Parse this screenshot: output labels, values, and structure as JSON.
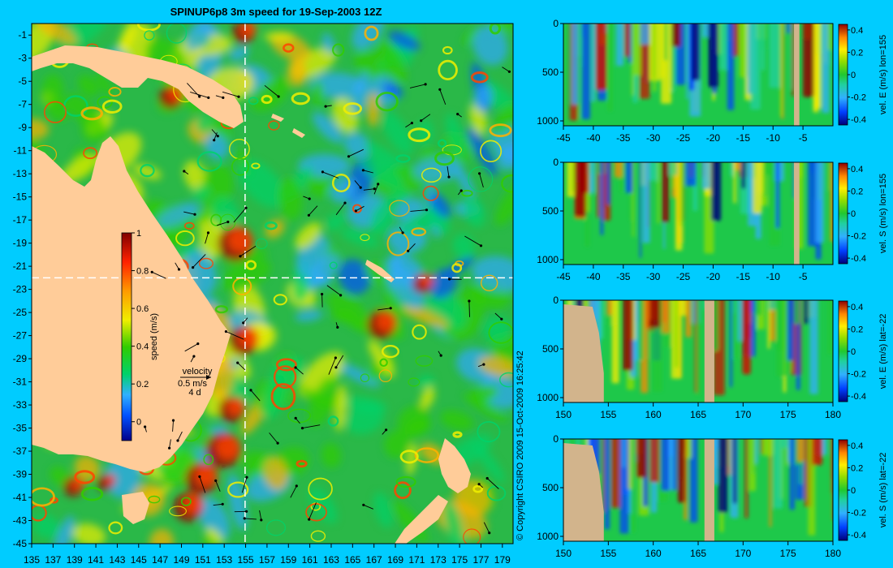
{
  "chart_data": [
    {
      "type": "heatmap",
      "title": "SPINUP6p8 3m speed for 19-Sep-2003 12Z",
      "x_ticks": [
        "135",
        "137",
        "139",
        "141",
        "143",
        "145",
        "147",
        "149",
        "151",
        "153",
        "155",
        "157",
        "159",
        "161",
        "163",
        "165",
        "167",
        "169",
        "171",
        "173",
        "175",
        "177",
        "179"
      ],
      "y_ticks": [
        "-1",
        "-3",
        "-5",
        "-7",
        "-9",
        "-11",
        "-13",
        "-15",
        "-17",
        "-19",
        "-21",
        "-23",
        "-25",
        "-27",
        "-29",
        "-31",
        "-33",
        "-35",
        "-37",
        "-39",
        "-41",
        "-43",
        "-45"
      ],
      "xlim": [
        135,
        180
      ],
      "ylim": [
        -45,
        0
      ],
      "colorbar": {
        "label": "speed (m/s)",
        "ticks": [
          "0",
          "0.2",
          "0.4",
          "0.6",
          "0.8",
          "1"
        ],
        "range": [
          -0.1,
          1
        ]
      },
      "velocity_key": {
        "label": "velocity",
        "speed": "0.5 m/s",
        "duration": "4 d"
      },
      "crosshair": {
        "lon": 155,
        "lat": -22
      },
      "copyright": "© Copyright CSIRO 2009  15-Oct-2009 16:25:42"
    },
    {
      "type": "heatmap",
      "x_ticks": [
        "-45",
        "-40",
        "-35",
        "-30",
        "-25",
        "-20",
        "-15",
        "-10",
        "-5"
      ],
      "y_ticks": [
        "0",
        "500",
        "1000"
      ],
      "xlim": [
        -45,
        0
      ],
      "ylim": [
        1050,
        0
      ],
      "colorbar": {
        "label": "vel. E (m/s) lon=155",
        "ticks": [
          "-0.4",
          "-0.2",
          "0",
          "0.2",
          "0.4"
        ]
      },
      "seed": 11
    },
    {
      "type": "heatmap",
      "x_ticks": [
        "-45",
        "-40",
        "-35",
        "-30",
        "-25",
        "-20",
        "-15",
        "-10",
        "-5"
      ],
      "y_ticks": [
        "0",
        "500",
        "1000"
      ],
      "xlim": [
        -45,
        0
      ],
      "ylim": [
        1050,
        0
      ],
      "colorbar": {
        "label": "vel. S (m/s) lon=155",
        "ticks": [
          "-0.4",
          "-0.2",
          "0",
          "0.2",
          "0.4"
        ]
      },
      "seed": 23
    },
    {
      "type": "heatmap",
      "x_ticks": [
        "150",
        "155",
        "160",
        "165",
        "170",
        "175",
        "180"
      ],
      "y_ticks": [
        "0",
        "500",
        "1000"
      ],
      "xlim": [
        150,
        180
      ],
      "ylim": [
        1050,
        0
      ],
      "colorbar": {
        "label": "vel. E (m/s) lat=-22",
        "ticks": [
          "-0.4",
          "-0.2",
          "0",
          "0.2",
          "0.4"
        ]
      },
      "seed": 37
    },
    {
      "type": "heatmap",
      "x_ticks": [
        "150",
        "155",
        "160",
        "165",
        "170",
        "175",
        "180"
      ],
      "y_ticks": [
        "0",
        "500",
        "1000"
      ],
      "xlim": [
        150,
        180
      ],
      "ylim": [
        1050,
        0
      ],
      "colorbar": {
        "label": "vel. S (m/s) lat=-22",
        "ticks": [
          "-0.4",
          "-0.2",
          "0",
          "0.2",
          "0.4"
        ]
      },
      "seed": 53
    }
  ]
}
